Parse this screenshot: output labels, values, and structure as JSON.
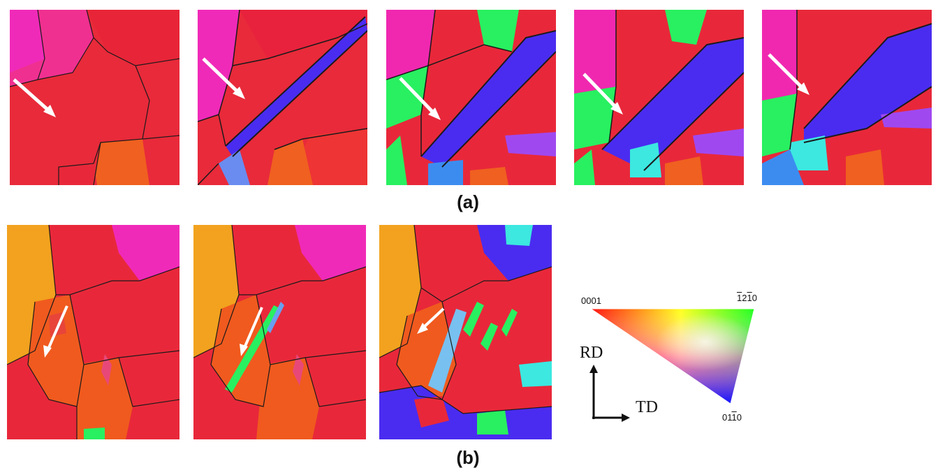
{
  "figure": {
    "row_a_label": "(a)",
    "row_b_label": "(b)"
  },
  "legend": {
    "pole_top_left": "0001",
    "pole_top_right": {
      "c1": "1",
      "c2": "2",
      "c3": "1",
      "c4": "0"
    },
    "pole_bottom": {
      "c1": "01",
      "c2": "1",
      "c3": "0"
    },
    "axis_vertical": "RD",
    "axis_horizontal": "TD"
  },
  "colors": {
    "red": "#e8203a",
    "magenta": "#f028b0",
    "orange": "#f05a1e",
    "yellow_orange": "#f2a21e",
    "blue": "#4a2cf0",
    "green": "#28f060",
    "cyan": "#3ce8e0",
    "boundary": "#1a1a1a",
    "arrow": "#ffffff"
  }
}
